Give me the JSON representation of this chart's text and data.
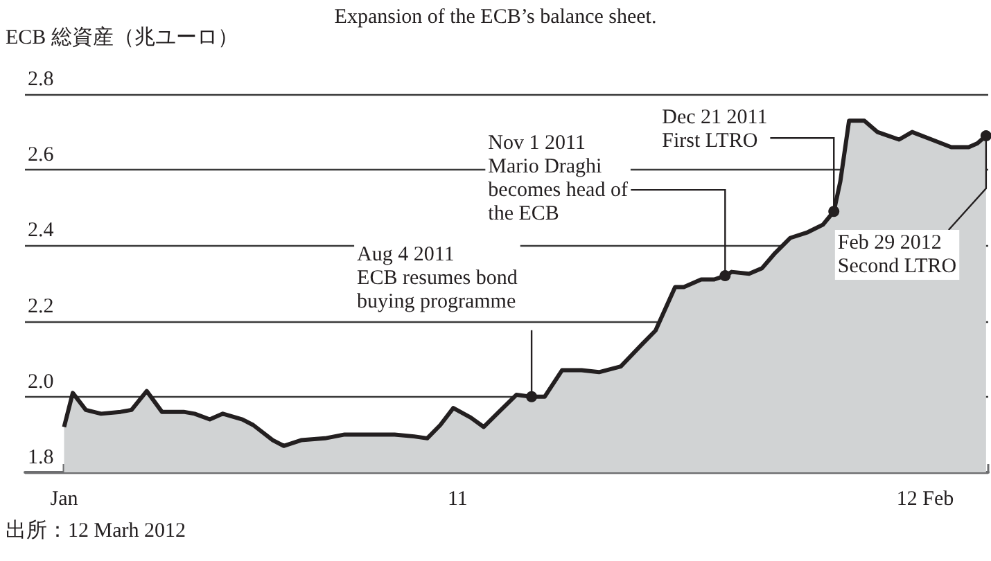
{
  "chart_data": {
    "type": "area",
    "title": "Expansion of the ECB’s balance sheet.",
    "ylabel": "ECB 総資産（兆ユーロ）",
    "x": [
      "2011-01-01",
      "2011-01-05",
      "2011-01-11",
      "2011-01-18",
      "2011-01-27",
      "2011-02-01",
      "2011-02-08",
      "2011-02-15",
      "2011-02-25",
      "2011-03-02",
      "2011-03-09",
      "2011-03-15",
      "2011-03-24",
      "2011-03-29",
      "2011-04-07",
      "2011-04-12",
      "2011-04-20",
      "2011-05-01",
      "2011-05-10",
      "2011-05-22",
      "2011-06-02",
      "2011-06-11",
      "2011-06-17",
      "2011-06-23",
      "2011-06-29",
      "2011-07-07",
      "2011-07-13",
      "2011-07-20",
      "2011-07-28",
      "2011-08-04",
      "2011-08-10",
      "2011-08-18",
      "2011-08-27",
      "2011-09-04",
      "2011-09-14",
      "2011-09-24",
      "2011-09-30",
      "2011-10-09",
      "2011-10-13",
      "2011-10-21",
      "2011-10-27",
      "2011-11-01",
      "2011-11-04",
      "2011-11-12",
      "2011-11-18",
      "2011-11-24",
      "2011-12-01",
      "2011-12-09",
      "2011-12-16",
      "2011-12-21",
      "2011-12-24",
      "2011-12-28",
      "2012-01-04",
      "2012-01-10",
      "2012-01-20",
      "2012-01-26",
      "2012-02-04",
      "2012-02-13",
      "2012-02-21",
      "2012-02-25",
      "2012-02-29"
    ],
    "series": [
      {
        "color": "#231f20",
        "values": [
          1.92,
          2.01,
          1.965,
          1.955,
          1.96,
          1.965,
          2.015,
          1.96,
          1.96,
          1.955,
          1.94,
          1.955,
          1.94,
          1.925,
          1.885,
          1.87,
          1.885,
          1.89,
          1.9,
          1.9,
          1.9,
          1.895,
          1.89,
          1.925,
          1.97,
          1.945,
          1.92,
          1.96,
          2.005,
          2.0,
          2.0,
          2.07,
          2.07,
          2.065,
          2.08,
          2.14,
          2.175,
          2.29,
          2.29,
          2.31,
          2.31,
          2.32,
          2.33,
          2.325,
          2.34,
          2.38,
          2.42,
          2.435,
          2.455,
          2.49,
          2.57,
          2.73,
          2.73,
          2.7,
          2.68,
          2.7,
          2.68,
          2.66,
          2.66,
          2.67,
          2.69
        ]
      }
    ],
    "ylim": [
      1.8,
      2.8
    ],
    "yticks": [
      1.8,
      {
        "value": 2.0,
        "label": "2.0"
      },
      2.2,
      2.4,
      2.6,
      2.8
    ],
    "xlim": [
      "2010-12-14",
      "2012-03-01"
    ],
    "xticks": [
      {
        "value": "2011-01",
        "label": "Jan"
      },
      {
        "value": "2011-02",
        "label": null
      },
      {
        "value": "2011-03",
        "label": null
      },
      {
        "value": "2011-04",
        "label": null
      },
      {
        "value": "2011-05",
        "label": null
      },
      {
        "value": "2011-06",
        "label": null
      },
      {
        "value": "2011-07",
        "label": "11"
      },
      {
        "value": "2011-08",
        "label": null
      },
      {
        "value": "2011-09",
        "label": null
      },
      {
        "value": "2011-10",
        "label": null
      },
      {
        "value": "2011-11",
        "label": null
      },
      {
        "value": "2011-12",
        "label": null
      },
      {
        "value": "2012-01",
        "label": null
      },
      {
        "value": "2012-02",
        "label": "12 Feb"
      },
      {
        "value": "2012-03",
        "label": null
      }
    ],
    "grid": "y",
    "annotations": [
      {
        "text": "Aug 4 2011\nECB resumes bond\nbuying programme",
        "x": "2011-08-04",
        "y": 2.0
      },
      {
        "text": "Nov 1 2011\nMario Draghi\nbecomes head of\nthe ECB",
        "x": "2011-11-01",
        "y": 2.32
      },
      {
        "text": "Dec 21 2011\nFirst LTRO",
        "x": "2011-12-21",
        "y": 2.49
      },
      {
        "text": "Feb 29 2012\nSecond LTRO",
        "x": "2012-02-29",
        "y": 2.69
      },
      "出所：12 Marh 2012"
    ]
  }
}
